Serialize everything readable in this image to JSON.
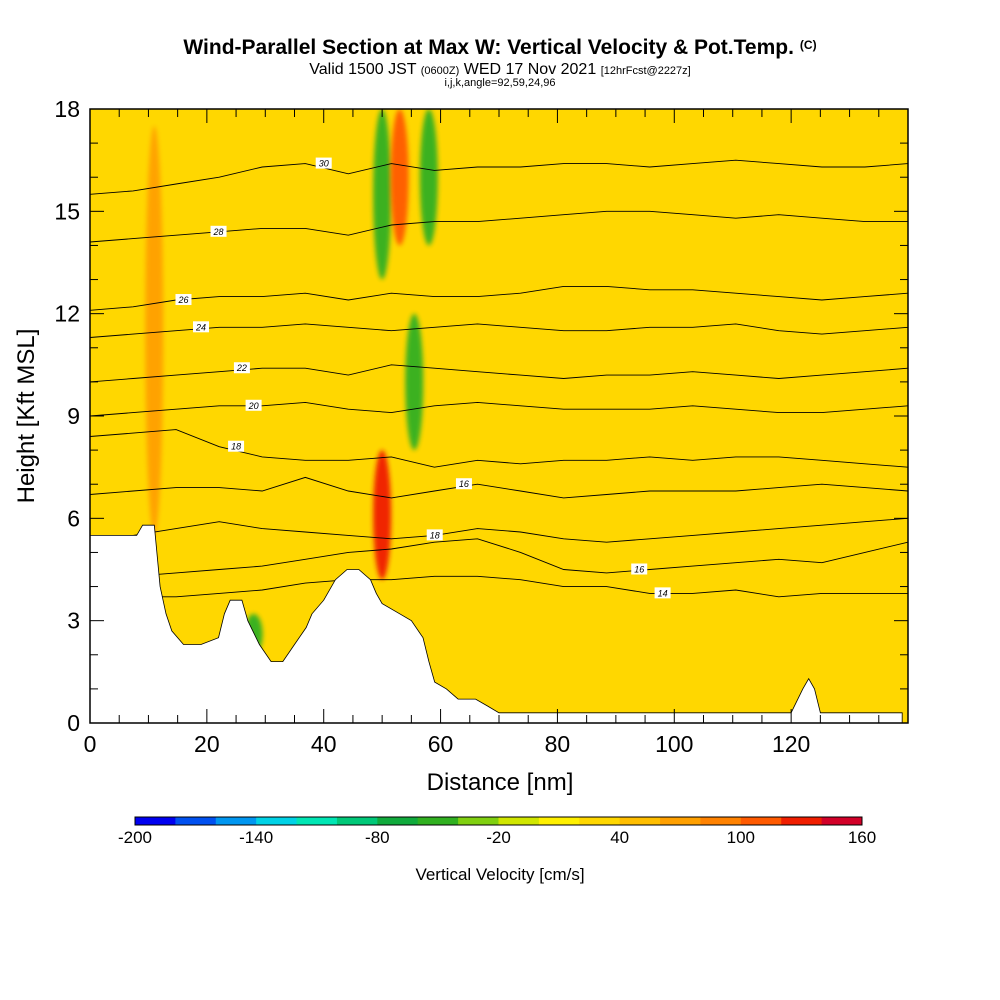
{
  "title": {
    "main": "Wind-Parallel Section at Max W: Vertical Velocity & Pot.Temp.",
    "units_tag": "(C)",
    "valid_pre": "Valid 1500 JST",
    "valid_utc": "(0600Z)",
    "valid_date": "WED 17 Nov 2021",
    "forecast": "[12hrFcst@2227z]",
    "indices": "i,j,k,angle=92,59,24,96"
  },
  "chart_data": {
    "type": "heatmap",
    "xlabel": "Distance [nm]",
    "ylabel": "Height [Kft MSL]",
    "xlim": [
      0,
      140
    ],
    "ylim": [
      0,
      18
    ],
    "x_ticks": [
      "0",
      "20",
      "40",
      "60",
      "80",
      "100",
      "120"
    ],
    "y_ticks": [
      "0",
      "3",
      "6",
      "9",
      "12",
      "15",
      "18"
    ],
    "x_tick_values": [
      0,
      20,
      40,
      60,
      80,
      100,
      120
    ],
    "y_tick_values": [
      0,
      3,
      6,
      9,
      12,
      15,
      18
    ],
    "colorbar": {
      "label": "Vertical Velocity [cm/s]",
      "range": [
        -200,
        160
      ],
      "step": 20,
      "tick_labels": [
        "-200",
        "-140",
        "-80",
        "-20",
        "40",
        "100",
        "160"
      ],
      "tick_values": [
        -200,
        -140,
        -80,
        -20,
        40,
        100,
        160
      ],
      "colors": [
        "#0000f0",
        "#0050f0",
        "#0096f0",
        "#00d2e6",
        "#00e6b4",
        "#00c878",
        "#10aa3c",
        "#30b020",
        "#80d010",
        "#d0e600",
        "#fff000",
        "#ffd700",
        "#ffbe00",
        "#ffa000",
        "#ff8200",
        "#ff5a00",
        "#f01e00",
        "#d20028",
        "#aa0064",
        "#7d008c",
        "#500096"
      ]
    },
    "terrain": [
      [
        0,
        5.5
      ],
      [
        3,
        5.5
      ],
      [
        8,
        5.5
      ],
      [
        9,
        5.8
      ],
      [
        11,
        5.8
      ],
      [
        12,
        4
      ],
      [
        13,
        3.2
      ],
      [
        14,
        2.7
      ],
      [
        16,
        2.3
      ],
      [
        19,
        2.3
      ],
      [
        22,
        2.5
      ],
      [
        23,
        3.2
      ],
      [
        24,
        3.6
      ],
      [
        26,
        3.6
      ],
      [
        27,
        3.0
      ],
      [
        29,
        2.3
      ],
      [
        31,
        1.8
      ],
      [
        33,
        1.8
      ],
      [
        35,
        2.3
      ],
      [
        37,
        2.8
      ],
      [
        38,
        3.2
      ],
      [
        40,
        3.6
      ],
      [
        42,
        4.2
      ],
      [
        44,
        4.5
      ],
      [
        46,
        4.5
      ],
      [
        48,
        4.2
      ],
      [
        49,
        3.8
      ],
      [
        50,
        3.5
      ],
      [
        53,
        3.2
      ],
      [
        55,
        3.0
      ],
      [
        57,
        2.5
      ],
      [
        58,
        1.8
      ],
      [
        59,
        1.2
      ],
      [
        61,
        1.0
      ],
      [
        63,
        0.7
      ],
      [
        66,
        0.7
      ],
      [
        68,
        0.5
      ],
      [
        70,
        0.3
      ],
      [
        120,
        0.3
      ],
      [
        122,
        1.0
      ],
      [
        123,
        1.3
      ],
      [
        124,
        1.0
      ],
      [
        125,
        0.3
      ],
      [
        139,
        0.3
      ]
    ],
    "theta_contours": [
      {
        "level": 14,
        "y": [
          3.7,
          3.7,
          3.7,
          3.8,
          3.9,
          4.1,
          4.2,
          4.2,
          4.3,
          4.3,
          4.2,
          4.0,
          4.0,
          3.8,
          3.8,
          3.9,
          3.7,
          3.8,
          3.8,
          3.8
        ],
        "label_x": 98
      },
      {
        "level": 16,
        "y": [
          4.3,
          4.3,
          4.4,
          4.5,
          4.6,
          4.8,
          5.0,
          5.1,
          5.3,
          5.4,
          5.0,
          4.5,
          4.4,
          4.5,
          4.6,
          4.7,
          4.8,
          4.7,
          5.0,
          5.3
        ],
        "label_x": 94
      },
      {
        "level": 18,
        "y": [
          5.2,
          5.5,
          5.7,
          5.9,
          5.7,
          5.6,
          5.5,
          5.4,
          5.5,
          5.7,
          5.6,
          5.4,
          5.3,
          5.4,
          5.5,
          5.6,
          5.7,
          5.8,
          5.9,
          6.0
        ],
        "label_x": 59
      },
      {
        "level": 16,
        "y": [
          6.7,
          6.8,
          6.9,
          6.9,
          6.8,
          7.2,
          6.8,
          6.6,
          6.8,
          7.0,
          6.8,
          6.6,
          6.7,
          6.8,
          6.8,
          6.8,
          6.9,
          7.0,
          6.9,
          6.8
        ],
        "label_x": 64
      },
      {
        "level": 18,
        "y": [
          8.4,
          8.5,
          8.6,
          8.1,
          7.8,
          7.7,
          7.7,
          7.8,
          7.5,
          7.7,
          7.6,
          7.7,
          7.7,
          7.8,
          7.7,
          7.8,
          7.8,
          7.7,
          7.6,
          7.5
        ],
        "label_x": 25
      },
      {
        "level": 20,
        "y": [
          9.0,
          9.1,
          9.2,
          9.3,
          9.3,
          9.4,
          9.2,
          9.1,
          9.3,
          9.4,
          9.3,
          9.2,
          9.2,
          9.2,
          9.3,
          9.2,
          9.1,
          9.1,
          9.2,
          9.3
        ],
        "label_x": 28
      },
      {
        "level": 22,
        "y": [
          10.0,
          10.1,
          10.2,
          10.3,
          10.4,
          10.4,
          10.2,
          10.5,
          10.4,
          10.3,
          10.2,
          10.1,
          10.2,
          10.2,
          10.3,
          10.2,
          10.1,
          10.2,
          10.3,
          10.4
        ],
        "label_x": 26
      },
      {
        "level": 24,
        "y": [
          11.3,
          11.4,
          11.5,
          11.6,
          11.6,
          11.7,
          11.6,
          11.5,
          11.6,
          11.7,
          11.6,
          11.5,
          11.5,
          11.6,
          11.6,
          11.7,
          11.5,
          11.4,
          11.5,
          11.6
        ],
        "label_x": 19
      },
      {
        "level": 26,
        "y": [
          12.1,
          12.2,
          12.4,
          12.5,
          12.5,
          12.6,
          12.4,
          12.6,
          12.5,
          12.5,
          12.6,
          12.8,
          12.8,
          12.7,
          12.7,
          12.6,
          12.5,
          12.4,
          12.5,
          12.6
        ],
        "label_x": 16
      },
      {
        "level": 28,
        "y": [
          14.1,
          14.2,
          14.3,
          14.4,
          14.5,
          14.5,
          14.3,
          14.6,
          14.7,
          14.7,
          14.8,
          14.9,
          15.0,
          15.0,
          14.9,
          14.8,
          14.9,
          14.8,
          14.7,
          14.7
        ],
        "label_x": 22
      },
      {
        "level": 30,
        "y": [
          15.5,
          15.6,
          15.8,
          16.0,
          16.3,
          16.4,
          16.1,
          16.4,
          16.2,
          16.3,
          16.3,
          16.4,
          16.4,
          16.3,
          16.4,
          16.5,
          16.4,
          16.3,
          16.3,
          16.4
        ],
        "label_x": 40
      }
    ],
    "updraft_cores": [
      {
        "x": 53,
        "y_min": 14.0,
        "y_max": 18,
        "w_cm_s": 100
      },
      {
        "x": 50,
        "y_min": 4.2,
        "y_max": 8.0,
        "w_cm_s": 120
      },
      {
        "x": 11,
        "y_min": 5.5,
        "y_max": 17.5,
        "w_cm_s": 60
      }
    ],
    "downdraft_cores": [
      {
        "x": 50,
        "y_min": 13.0,
        "y_max": 18,
        "w_cm_s": -60
      },
      {
        "x": 55.5,
        "y_min": 8.0,
        "y_max": 12.0,
        "w_cm_s": -60
      },
      {
        "x": 28,
        "y_min": 2.0,
        "y_max": 3.2,
        "w_cm_s": -60
      },
      {
        "x": 58,
        "y_min": 14.0,
        "y_max": 18,
        "w_cm_s": -50
      }
    ]
  }
}
